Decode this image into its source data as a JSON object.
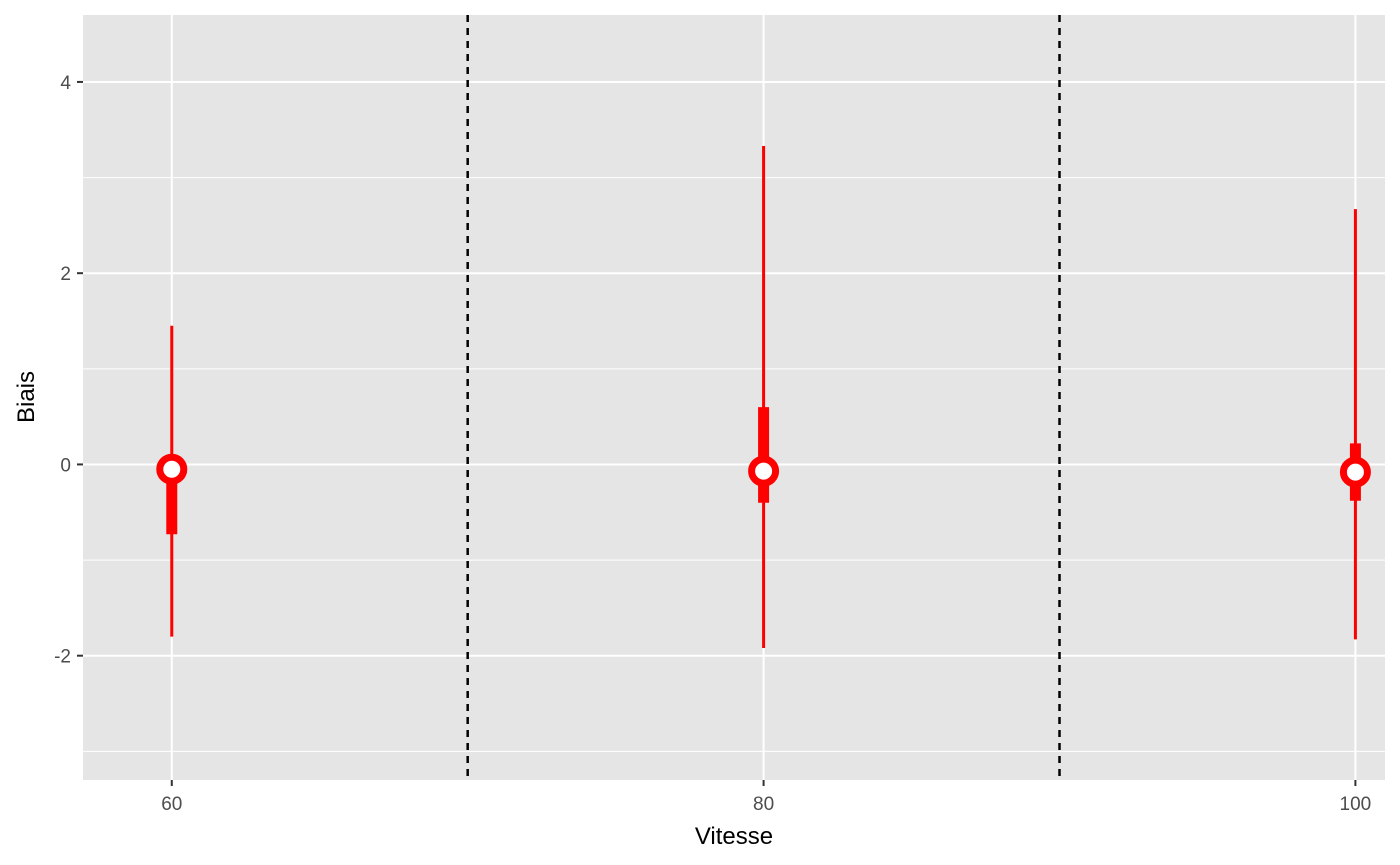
{
  "chart_data": {
    "type": "pointrange",
    "title": "",
    "xlabel": "Vitesse",
    "ylabel": "Biais",
    "xlim": [
      57,
      101
    ],
    "ylim": [
      -3.3,
      4.7
    ],
    "x_ticks": [
      60,
      80,
      100
    ],
    "x_tick_labels": [
      "60",
      "80",
      "100"
    ],
    "y_ticks": [
      -2,
      0,
      2,
      4
    ],
    "y_tick_labels": [
      "-2",
      "0",
      "2",
      "4"
    ],
    "y_minor_ticks": [
      -3,
      -1,
      1,
      3
    ],
    "vlines": [
      70,
      90
    ],
    "grid": true,
    "legend": "none",
    "points": [
      {
        "x": 60,
        "y": -0.05,
        "inner_low": -0.73,
        "inner_high": 0.0,
        "outer_low": -1.8,
        "outer_high": 1.45
      },
      {
        "x": 80,
        "y": -0.07,
        "inner_low": -0.4,
        "inner_high": 0.6,
        "outer_low": -1.92,
        "outer_high": 3.33
      },
      {
        "x": 100,
        "y": -0.08,
        "inner_low": -0.38,
        "inner_high": 0.22,
        "outer_low": -1.83,
        "outer_high": 2.67
      }
    ],
    "colors": {
      "panel": "#e5e5e5",
      "grid": "#ffffff",
      "series": "#ff0000",
      "vline": "#000000",
      "point_fill": "#ffffff"
    }
  }
}
